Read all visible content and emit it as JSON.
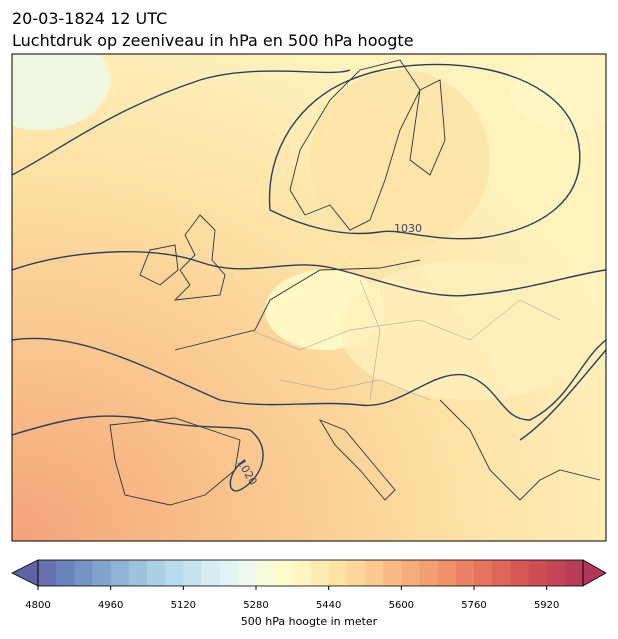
{
  "title": "20-03-1824 12 UTC",
  "subtitle": "Luchtdruk op zeeniveau in hPa en 500 hPa hoogte",
  "contour_labels": [
    "1030",
    "1020"
  ],
  "colorbar": {
    "label": "500 hPa hoogte in meter",
    "lim": [
      4800,
      6000
    ],
    "ticks": [
      4800,
      4960,
      5120,
      5280,
      5440,
      5600,
      5760,
      5920
    ],
    "under_color": "#5f63a6",
    "over_color": "#b03757",
    "colors": [
      "#6870b2",
      "#6b82ba",
      "#7593c3",
      "#82a4cb",
      "#8fb4d4",
      "#9dc3dc",
      "#aad0e4",
      "#b8dbeb",
      "#c6e4ef",
      "#d4ecf2",
      "#e2f3f5",
      "#eef8ee",
      "#f6fbdc",
      "#fdfbcc",
      "#fff5c0",
      "#fdecb2",
      "#fde2a6",
      "#fcd69a",
      "#fbc98e",
      "#f9bb83",
      "#f7ad7a",
      "#f49f72",
      "#f0916a",
      "#eb8263",
      "#e5745d",
      "#de6658",
      "#d65956",
      "#cd4d55",
      "#c34556",
      "#b83e57"
    ]
  }
}
